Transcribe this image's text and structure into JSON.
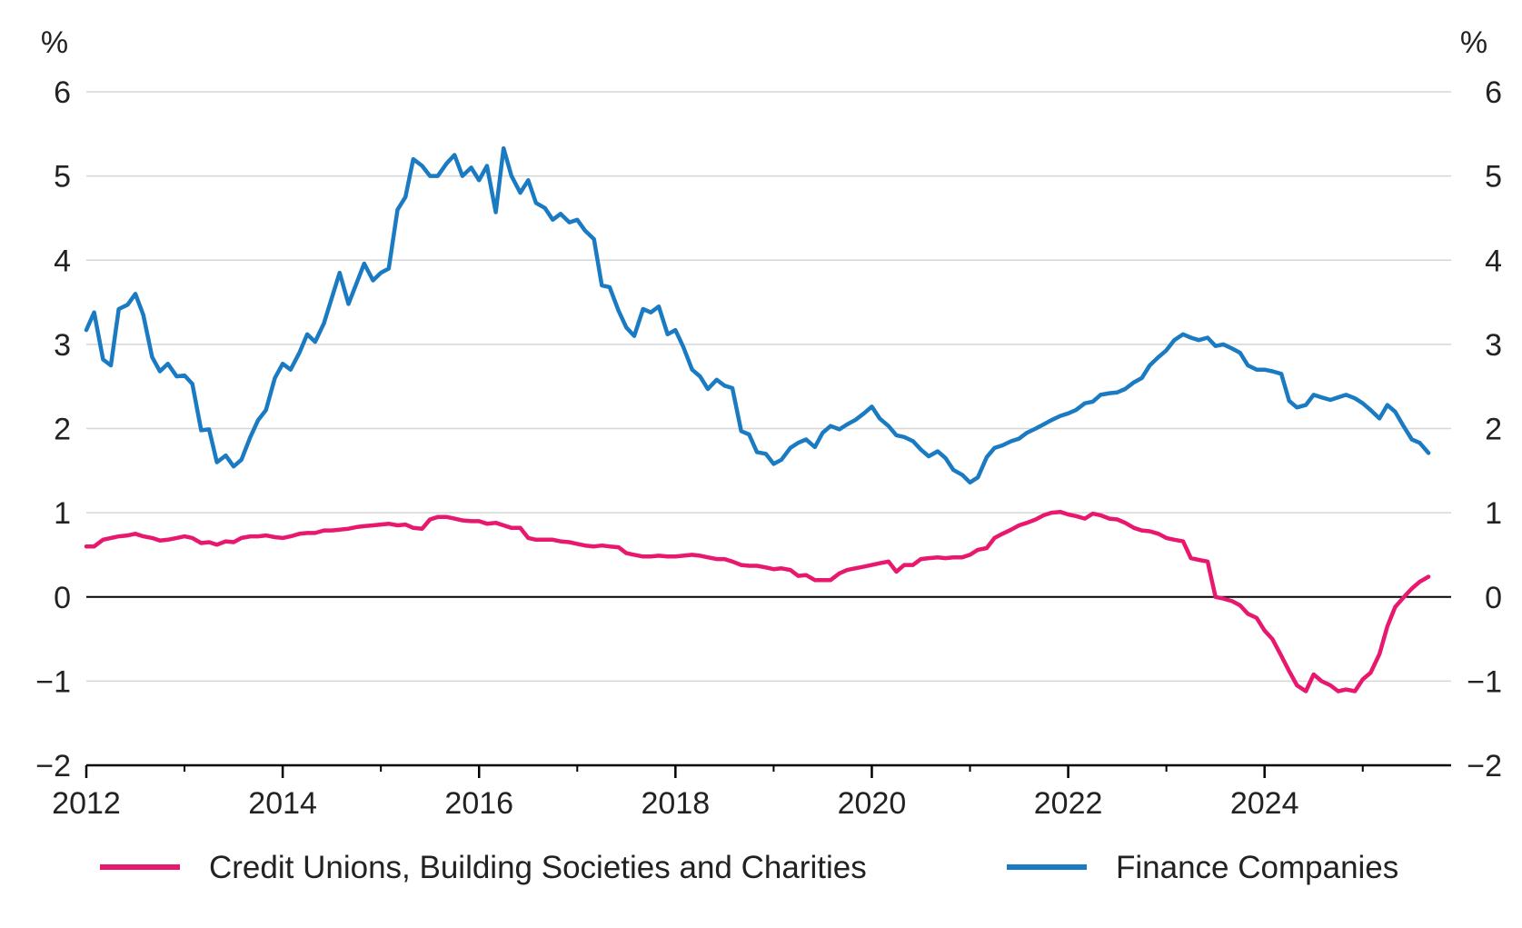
{
  "chart_data": {
    "type": "line",
    "title": "",
    "xlabel": "",
    "ylabel": "%",
    "ylabel_right": "%",
    "ylim": [
      -2,
      6
    ],
    "yticks": [
      6,
      5,
      4,
      3,
      2,
      1,
      0,
      -1,
      -2
    ],
    "ytick_labels": [
      "6",
      "5",
      "4",
      "3",
      "2",
      "1",
      "0",
      "−1",
      "−2"
    ],
    "xlim": [
      2012,
      2025.9
    ],
    "xticks": [
      2012,
      2014,
      2016,
      2018,
      2020,
      2022,
      2024
    ],
    "xtick_labels": [
      "2012",
      "2014",
      "2016",
      "2018",
      "2020",
      "2022",
      "2024"
    ],
    "grid": true,
    "legend_position": "bottom",
    "series": [
      {
        "name": "Credit Unions, Building Societies and Charities",
        "color": "#e8186e",
        "x": [
          2012.0,
          2012.08,
          2012.17,
          2012.25,
          2012.33,
          2012.42,
          2012.5,
          2012.58,
          2012.67,
          2012.75,
          2012.83,
          2012.92,
          2013.0,
          2013.08,
          2013.17,
          2013.25,
          2013.33,
          2013.42,
          2013.5,
          2013.58,
          2013.67,
          2013.75,
          2013.83,
          2013.92,
          2014.0,
          2014.08,
          2014.17,
          2014.25,
          2014.33,
          2014.42,
          2014.5,
          2014.58,
          2014.67,
          2014.75,
          2014.83,
          2014.92,
          2015.0,
          2015.08,
          2015.17,
          2015.25,
          2015.33,
          2015.42,
          2015.5,
          2015.58,
          2015.67,
          2015.75,
          2015.83,
          2015.92,
          2016.0,
          2016.08,
          2016.17,
          2016.25,
          2016.33,
          2016.42,
          2016.5,
          2016.58,
          2016.67,
          2016.75,
          2016.83,
          2016.92,
          2017.0,
          2017.08,
          2017.17,
          2017.25,
          2017.33,
          2017.42,
          2017.5,
          2017.58,
          2017.67,
          2017.75,
          2017.83,
          2017.92,
          2018.0,
          2018.08,
          2018.17,
          2018.25,
          2018.33,
          2018.42,
          2018.5,
          2018.58,
          2018.67,
          2018.75,
          2018.83,
          2018.92,
          2019.0,
          2019.08,
          2019.17,
          2019.25,
          2019.33,
          2019.42,
          2019.5,
          2019.58,
          2019.67,
          2019.75,
          2019.83,
          2019.92,
          2020.0,
          2020.08,
          2020.17,
          2020.25,
          2020.33,
          2020.42,
          2020.5,
          2020.58,
          2020.67,
          2020.75,
          2020.83,
          2020.92,
          2021.0,
          2021.08,
          2021.17,
          2021.25,
          2021.33,
          2021.42,
          2021.5,
          2021.58,
          2021.67,
          2021.75,
          2021.83,
          2021.92,
          2022.0,
          2022.08,
          2022.17,
          2022.25,
          2022.33,
          2022.42,
          2022.5,
          2022.58,
          2022.67,
          2022.75,
          2022.83,
          2022.92,
          2023.0,
          2023.08,
          2023.17,
          2023.25,
          2023.33,
          2023.42,
          2023.5,
          2023.58,
          2023.67,
          2023.75,
          2023.83,
          2023.92,
          2024.0,
          2024.08,
          2024.17,
          2024.25,
          2024.33,
          2024.42,
          2024.5,
          2024.58,
          2024.67,
          2024.75,
          2024.83,
          2024.92,
          2025.0,
          2025.08,
          2025.17,
          2025.25,
          2025.33,
          2025.42,
          2025.5,
          2025.58,
          2025.67
        ],
        "y": [
          0.6,
          0.6,
          0.68,
          0.7,
          0.72,
          0.73,
          0.75,
          0.72,
          0.7,
          0.67,
          0.68,
          0.7,
          0.72,
          0.7,
          0.64,
          0.65,
          0.62,
          0.66,
          0.65,
          0.7,
          0.72,
          0.72,
          0.73,
          0.71,
          0.7,
          0.72,
          0.75,
          0.76,
          0.76,
          0.79,
          0.79,
          0.8,
          0.81,
          0.83,
          0.84,
          0.85,
          0.86,
          0.87,
          0.85,
          0.86,
          0.82,
          0.81,
          0.92,
          0.95,
          0.95,
          0.93,
          0.91,
          0.9,
          0.9,
          0.87,
          0.88,
          0.85,
          0.82,
          0.82,
          0.7,
          0.68,
          0.68,
          0.68,
          0.66,
          0.65,
          0.63,
          0.61,
          0.6,
          0.61,
          0.6,
          0.59,
          0.52,
          0.5,
          0.48,
          0.48,
          0.49,
          0.48,
          0.48,
          0.49,
          0.5,
          0.49,
          0.47,
          0.45,
          0.45,
          0.42,
          0.38,
          0.37,
          0.37,
          0.35,
          0.33,
          0.34,
          0.32,
          0.25,
          0.26,
          0.2,
          0.2,
          0.2,
          0.28,
          0.32,
          0.34,
          0.36,
          0.38,
          0.4,
          0.42,
          0.3,
          0.38,
          0.38,
          0.45,
          0.46,
          0.47,
          0.46,
          0.47,
          0.47,
          0.5,
          0.56,
          0.58,
          0.7,
          0.75,
          0.8,
          0.85,
          0.88,
          0.92,
          0.97,
          1.0,
          1.01,
          0.98,
          0.96,
          0.93,
          0.99,
          0.97,
          0.93,
          0.92,
          0.88,
          0.82,
          0.79,
          0.78,
          0.75,
          0.7,
          0.68,
          0.66,
          0.46,
          0.44,
          0.42,
          0.0,
          -0.02,
          -0.05,
          -0.1,
          -0.2,
          -0.25,
          -0.4,
          -0.5,
          -0.7,
          -0.88,
          -1.05,
          -1.12,
          -0.92,
          -1.0,
          -1.05,
          -1.12,
          -1.1,
          -1.12,
          -0.98,
          -0.9,
          -0.68,
          -0.35,
          -0.12,
          0.0,
          0.1,
          0.18,
          0.24
        ]
      },
      {
        "name": "Finance Companies",
        "color": "#1a7bc2",
        "x": [
          2012.0,
          2012.08,
          2012.17,
          2012.25,
          2012.33,
          2012.42,
          2012.5,
          2012.58,
          2012.67,
          2012.75,
          2012.83,
          2012.92,
          2013.0,
          2013.08,
          2013.17,
          2013.25,
          2013.33,
          2013.42,
          2013.5,
          2013.58,
          2013.67,
          2013.75,
          2013.83,
          2013.92,
          2014.0,
          2014.08,
          2014.17,
          2014.25,
          2014.33,
          2014.42,
          2014.5,
          2014.58,
          2014.67,
          2014.75,
          2014.83,
          2014.92,
          2015.0,
          2015.08,
          2015.17,
          2015.25,
          2015.33,
          2015.42,
          2015.5,
          2015.58,
          2015.67,
          2015.75,
          2015.83,
          2015.92,
          2016.0,
          2016.08,
          2016.17,
          2016.25,
          2016.33,
          2016.42,
          2016.5,
          2016.58,
          2016.67,
          2016.75,
          2016.83,
          2016.92,
          2017.0,
          2017.08,
          2017.17,
          2017.25,
          2017.33,
          2017.42,
          2017.5,
          2017.58,
          2017.67,
          2017.75,
          2017.83,
          2017.92,
          2018.0,
          2018.08,
          2018.17,
          2018.25,
          2018.33,
          2018.42,
          2018.5,
          2018.58,
          2018.67,
          2018.75,
          2018.83,
          2018.92,
          2019.0,
          2019.08,
          2019.17,
          2019.25,
          2019.33,
          2019.42,
          2019.5,
          2019.58,
          2019.67,
          2019.75,
          2019.83,
          2019.92,
          2020.0,
          2020.08,
          2020.17,
          2020.25,
          2020.33,
          2020.42,
          2020.5,
          2020.58,
          2020.67,
          2020.75,
          2020.83,
          2020.92,
          2021.0,
          2021.08,
          2021.17,
          2021.25,
          2021.33,
          2021.42,
          2021.5,
          2021.58,
          2021.67,
          2021.75,
          2021.83,
          2021.92,
          2022.0,
          2022.08,
          2022.17,
          2022.25,
          2022.33,
          2022.42,
          2022.5,
          2022.58,
          2022.67,
          2022.75,
          2022.83,
          2022.92,
          2023.0,
          2023.08,
          2023.17,
          2023.25,
          2023.33,
          2023.42,
          2023.5,
          2023.58,
          2023.67,
          2023.75,
          2023.83,
          2023.92,
          2024.0,
          2024.08,
          2024.17,
          2024.25,
          2024.33,
          2024.42,
          2024.5,
          2024.58,
          2024.67,
          2024.75,
          2024.83,
          2024.92,
          2025.0,
          2025.08,
          2025.17,
          2025.25,
          2025.33,
          2025.42,
          2025.5,
          2025.58,
          2025.67
        ],
        "y": [
          3.17,
          3.38,
          2.82,
          2.75,
          3.42,
          3.47,
          3.6,
          3.35,
          2.85,
          2.68,
          2.77,
          2.62,
          2.63,
          2.53,
          1.98,
          1.99,
          1.6,
          1.68,
          1.55,
          1.63,
          1.9,
          2.1,
          2.22,
          2.6,
          2.77,
          2.7,
          2.9,
          3.12,
          3.03,
          3.25,
          3.55,
          3.85,
          3.48,
          3.72,
          3.96,
          3.76,
          3.85,
          3.9,
          4.6,
          4.75,
          5.2,
          5.12,
          5.0,
          5.0,
          5.15,
          5.25,
          5.0,
          5.1,
          4.95,
          5.12,
          4.57,
          5.33,
          5.0,
          4.8,
          4.95,
          4.68,
          4.62,
          4.48,
          4.55,
          4.45,
          4.48,
          4.35,
          4.25,
          3.7,
          3.68,
          3.4,
          3.2,
          3.1,
          3.42,
          3.38,
          3.45,
          3.12,
          3.17,
          2.97,
          2.7,
          2.62,
          2.47,
          2.58,
          2.51,
          2.48,
          1.97,
          1.93,
          1.72,
          1.7,
          1.58,
          1.63,
          1.77,
          1.83,
          1.87,
          1.78,
          1.95,
          2.03,
          1.99,
          2.05,
          2.1,
          2.18,
          2.26,
          2.12,
          2.03,
          1.92,
          1.9,
          1.85,
          1.75,
          1.67,
          1.73,
          1.65,
          1.51,
          1.45,
          1.36,
          1.42,
          1.66,
          1.77,
          1.8,
          1.85,
          1.88,
          1.95,
          2.0,
          2.05,
          2.1,
          2.15,
          2.18,
          2.22,
          2.3,
          2.32,
          2.4,
          2.42,
          2.43,
          2.47,
          2.55,
          2.6,
          2.75,
          2.85,
          2.93,
          3.05,
          3.12,
          3.08,
          3.05,
          3.08,
          2.98,
          3.0,
          2.95,
          2.9,
          2.75,
          2.7,
          2.7,
          2.68,
          2.65,
          2.33,
          2.25,
          2.28,
          2.4,
          2.37,
          2.34,
          2.37,
          2.4,
          2.36,
          2.3,
          2.22,
          2.12,
          2.28,
          2.2,
          2.02,
          1.87,
          1.83,
          1.71
        ]
      }
    ]
  }
}
